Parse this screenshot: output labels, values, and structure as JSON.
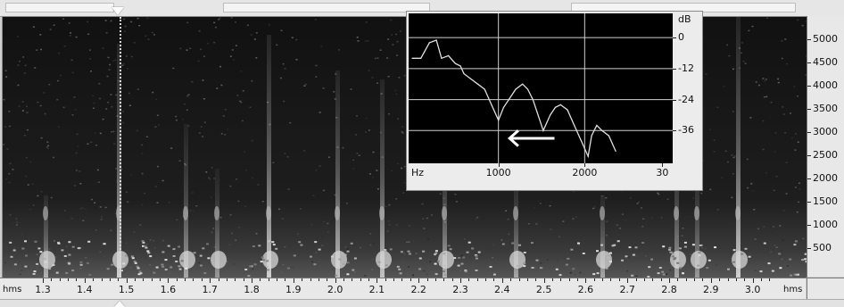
{
  "time_axis": {
    "unit_left": "hms",
    "unit_right": "hms",
    "labels": [
      "1.3",
      "1.4",
      "1.5",
      "1.6",
      "1.7",
      "1.8",
      "1.9",
      "2.0",
      "2.1",
      "2.2",
      "2.3",
      "2.4",
      "2.5",
      "2.6",
      "2.7",
      "2.8",
      "2.9",
      "3.0"
    ]
  },
  "frequency_axis": {
    "labels": [
      "5000",
      "4500",
      "4000",
      "3500",
      "3000",
      "2500",
      "2000",
      "1500",
      "1000",
      "500"
    ]
  },
  "spectrum_panel": {
    "db_unit": "dB",
    "db_labels": [
      "0",
      "-12",
      "-24",
      "-36"
    ],
    "hz_unit": "Hz",
    "hz_labels": [
      "1000",
      "2000",
      "30"
    ],
    "arrow": "white-left-arrow",
    "line_color": "#e0e0e0",
    "grid_color": "#d0d0d0"
  },
  "chart_data": {
    "type": "line",
    "title": "",
    "xlabel": "Hz",
    "ylabel": "dB",
    "xlim": [
      0,
      3000
    ],
    "ylim": [
      -48,
      8
    ],
    "x": [
      0,
      100,
      200,
      280,
      340,
      420,
      500,
      560,
      600,
      680,
      760,
      840,
      920,
      1000,
      1060,
      1120,
      1200,
      1280,
      1340,
      1400,
      1460,
      1520,
      1600,
      1660,
      1720,
      1800,
      1880,
      1960,
      2040,
      2080,
      2140,
      2200,
      2280,
      2360
    ],
    "series": [
      {
        "values": [
          -8,
          -8,
          -2,
          -1,
          -8,
          -7,
          -10,
          -11,
          -14,
          -16,
          -18,
          -20,
          -26,
          -32,
          -27,
          -24,
          -20,
          -18,
          -20,
          -24,
          -30,
          -36,
          -30,
          -27,
          -26,
          -28,
          -34,
          -40,
          -46,
          -38,
          -34,
          -36,
          -38,
          -44
        ]
      }
    ]
  }
}
